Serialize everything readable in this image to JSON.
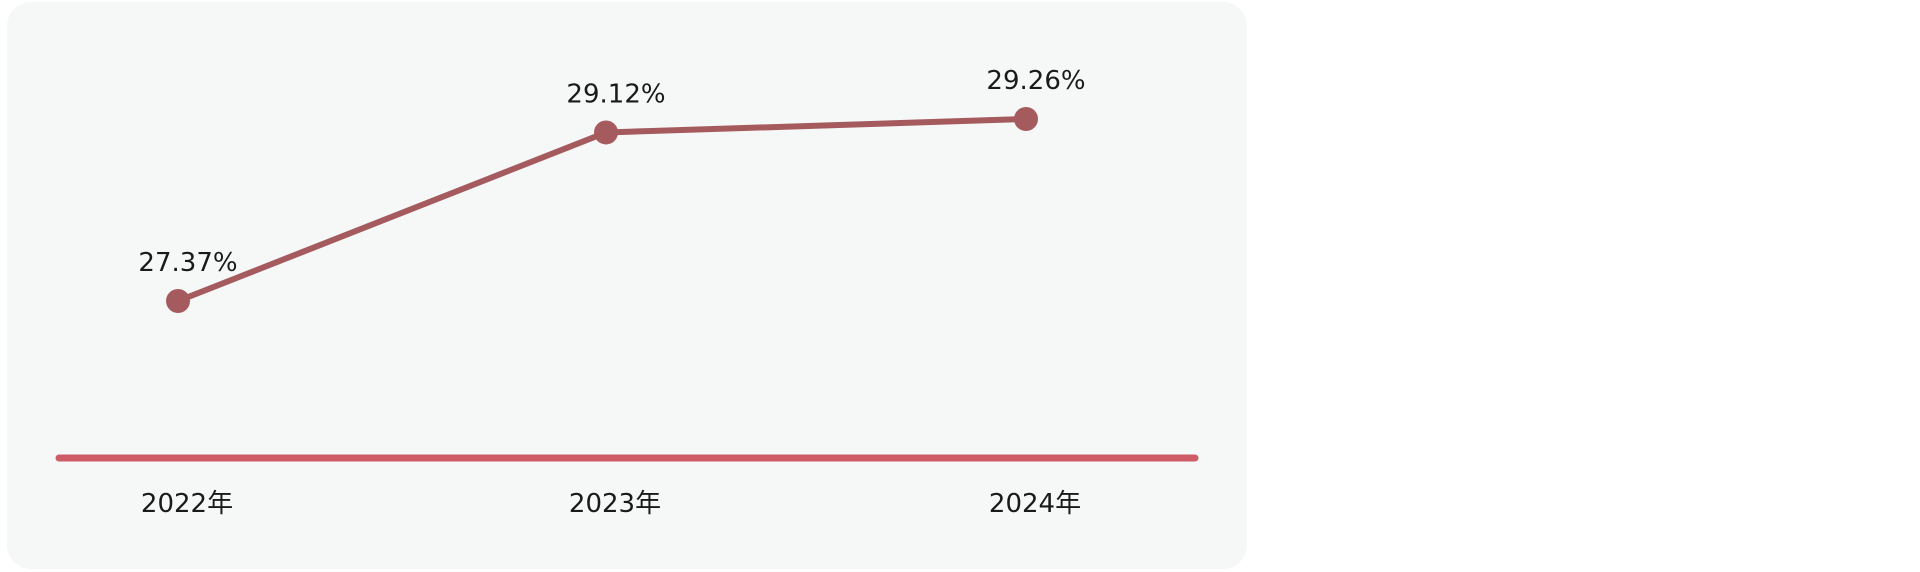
{
  "chart_data": {
    "type": "line",
    "categories": [
      "2022年",
      "2023年",
      "2024年"
    ],
    "series": [
      {
        "values": [
          27.37,
          29.12,
          29.26
        ],
        "labels": [
          "27.37%",
          "29.12%",
          "29.26%"
        ]
      }
    ],
    "title": "",
    "xlabel": "",
    "ylabel": "",
    "grid": false,
    "legend": "none",
    "colors": {
      "line": "#a55a5e",
      "axis": "#cd5c66",
      "background": "#f6f7f7"
    }
  }
}
